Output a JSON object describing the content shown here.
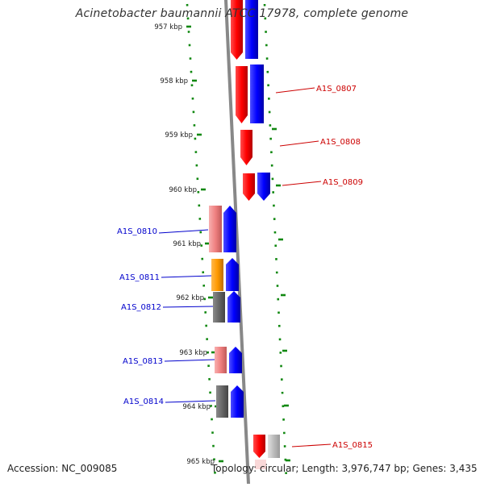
{
  "title": "Acinetobacter baumannii ATCC 17978, complete genome",
  "accession": "Accession: NC_009085",
  "summary": "Topology: circular; Length: 3,976,747 bp; Genes: 3,435",
  "ruler": {
    "unit": "kbp",
    "ticks": [
      "957 kbp",
      "958 kbp",
      "959 kbp",
      "960 kbp",
      "961 kbp",
      "962 kbp",
      "963 kbp",
      "964 kbp",
      "965 kbp"
    ]
  },
  "colors": {
    "forward_gene": "#ff0000",
    "forward_cds": "#0000ff",
    "reverse_gene_pink": "#f08080",
    "orange_gene": "#ff9900",
    "grey_gene": "#666666",
    "light_grey_gene": "#bbbbbb",
    "forward_label": "#cc0000",
    "reverse_label": "#0000cc",
    "ruler_tick": "#118811",
    "backbone": "#888888"
  },
  "forward_labels": [
    {
      "text": "A1S_0807"
    },
    {
      "text": "A1S_0808"
    },
    {
      "text": "A1S_0809"
    },
    {
      "text": "A1S_0815"
    }
  ],
  "reverse_labels": [
    {
      "text": "A1S_0810"
    },
    {
      "text": "A1S_0811"
    },
    {
      "text": "A1S_0812"
    },
    {
      "text": "A1S_0813"
    },
    {
      "text": "A1S_0814"
    }
  ]
}
